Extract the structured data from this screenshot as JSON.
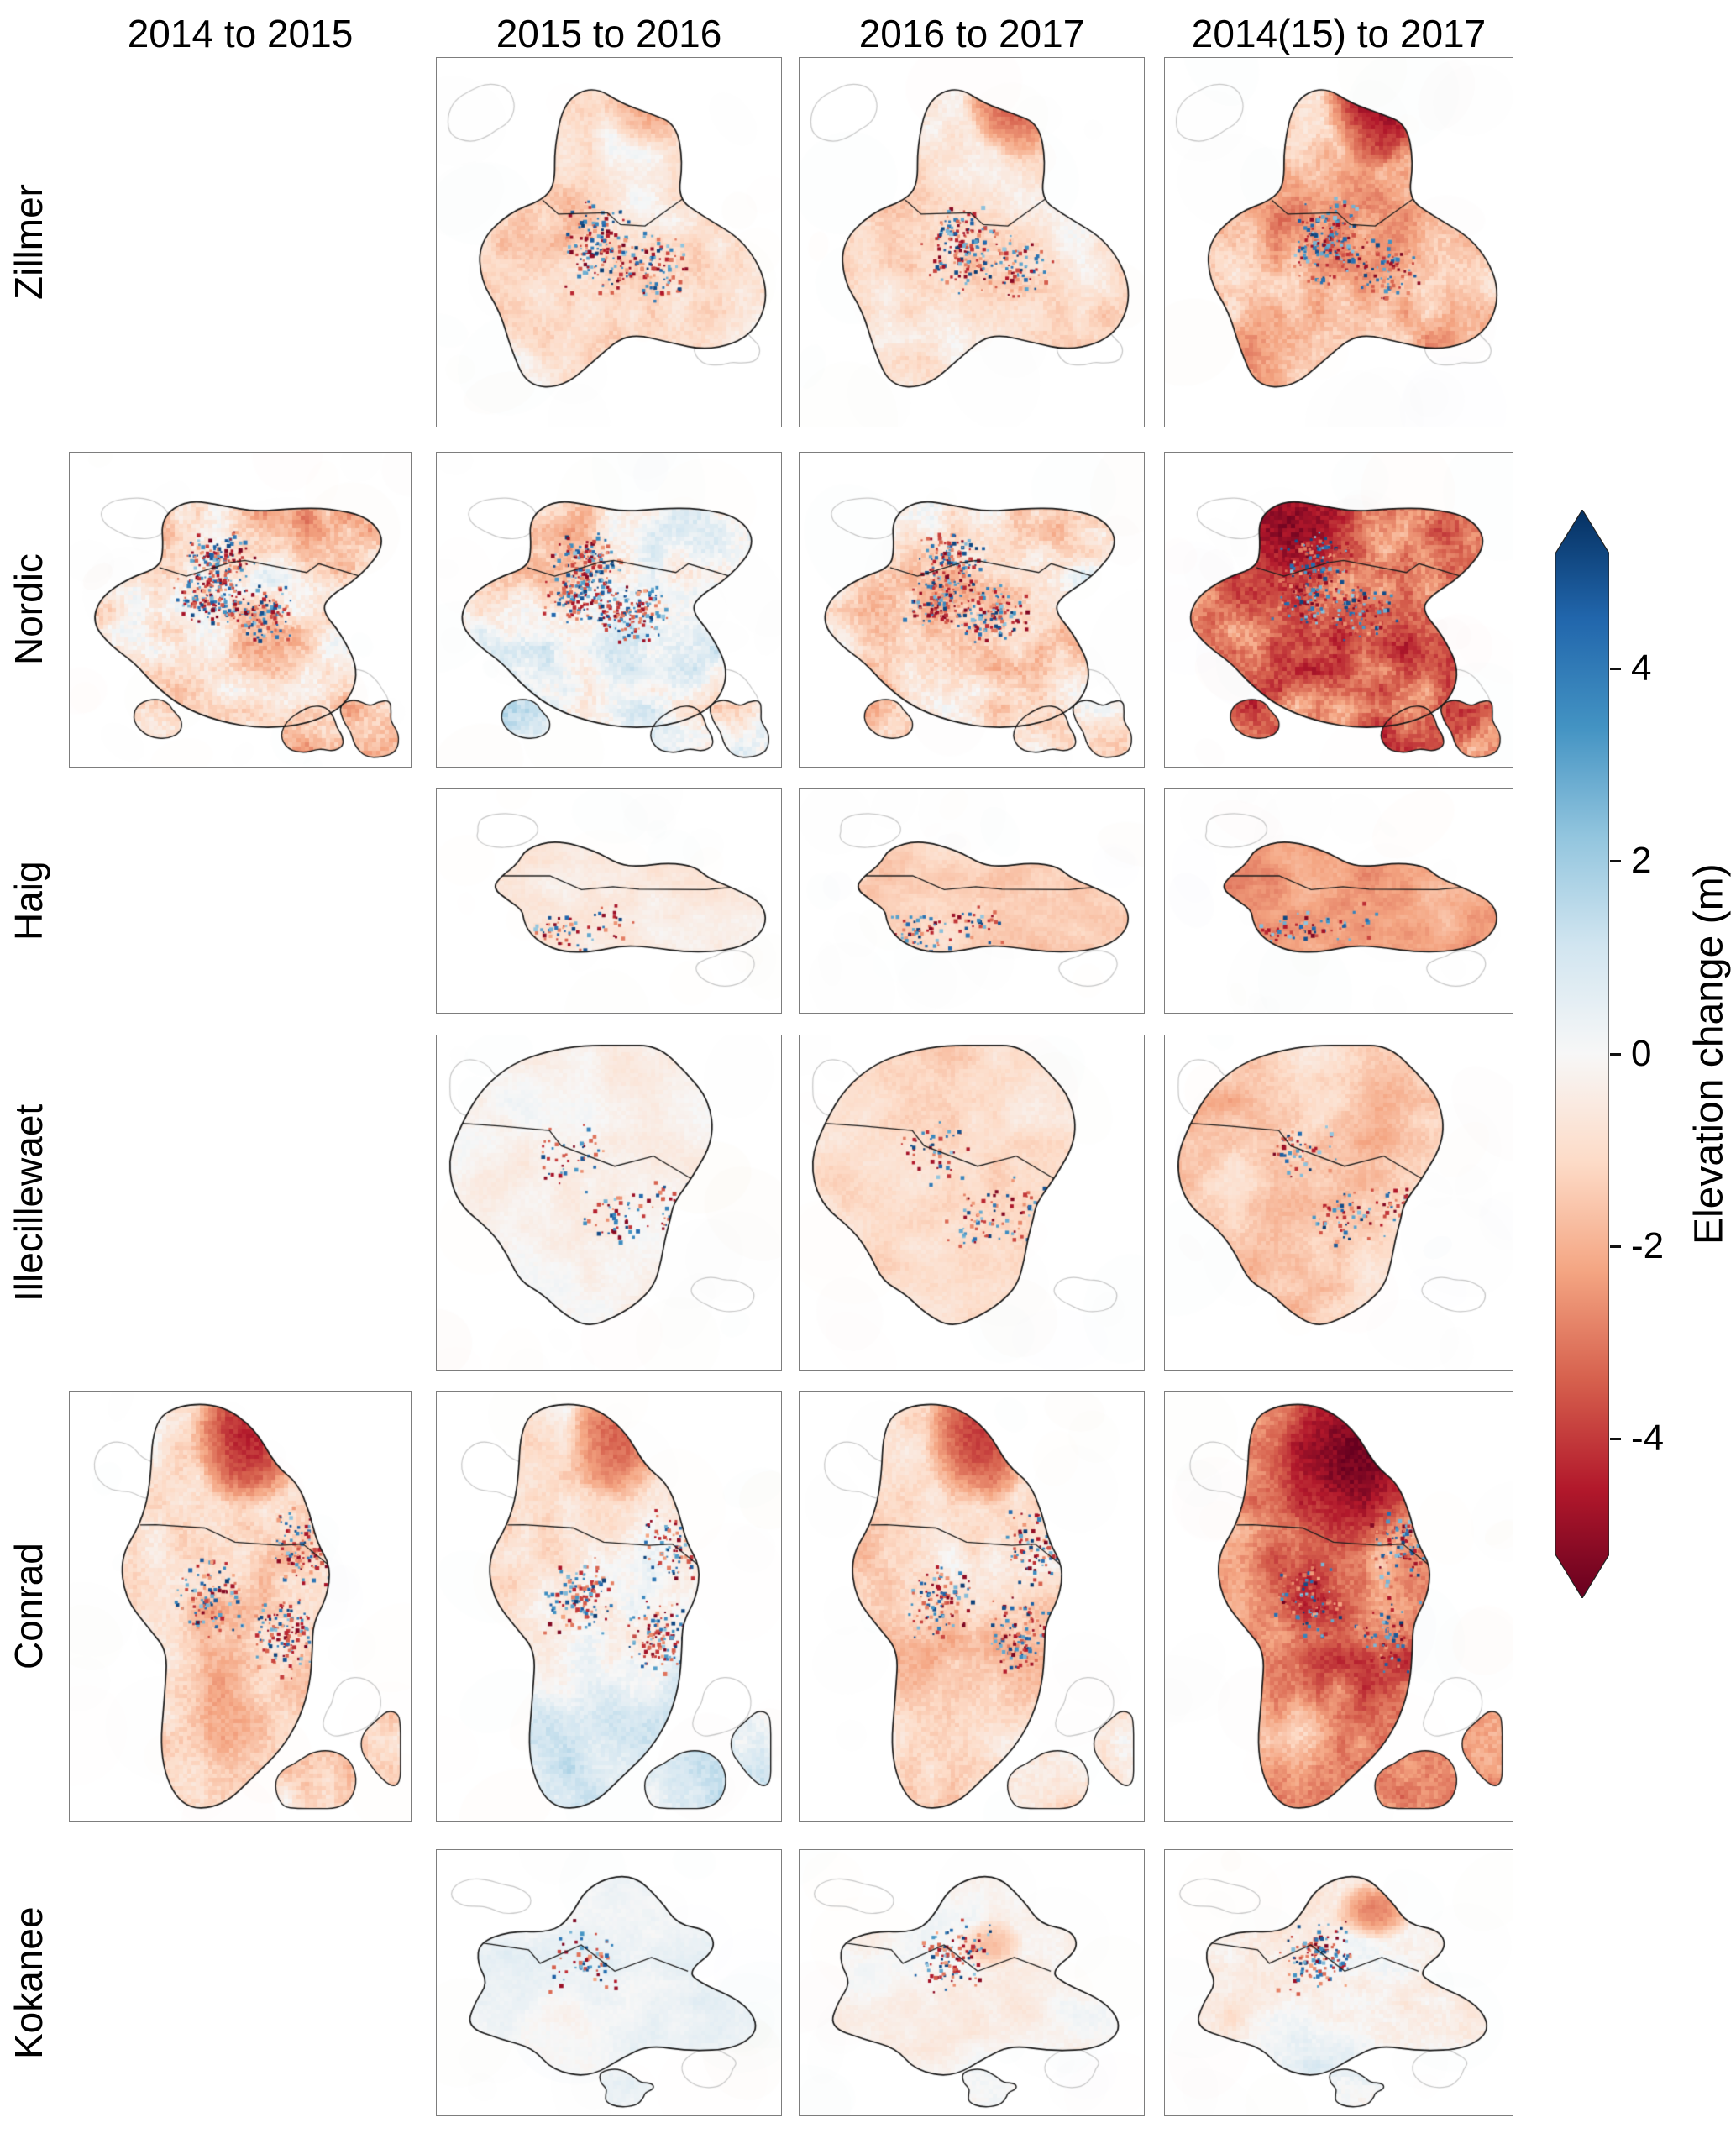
{
  "colorbar": {
    "label": "Elevation change (m)",
    "ticks": [
      4,
      2,
      0,
      -2,
      -4
    ],
    "extend": "both",
    "colormap": [
      "#67001f",
      "#b2182b",
      "#d6604d",
      "#f4a582",
      "#fddbc7",
      "#f7f7f7",
      "#d1e5f0",
      "#92c5de",
      "#4393c3",
      "#2166ac",
      "#053061"
    ]
  },
  "chart_data": {
    "type": "heatmap",
    "title": "",
    "value_label": "Elevation change (m)",
    "columns": [
      "2014 to 2015",
      "2015 to 2016",
      "2016 to 2017",
      "2014(15) to 2017"
    ],
    "rows": [
      {
        "name": "Zillmer",
        "panels": [
          {
            "present": false
          },
          {
            "present": true,
            "mean_change_m": -0.7,
            "variability_m": 0.7,
            "speckle": 260,
            "hotspot": {
              "x": 0.63,
              "y": 0.1,
              "r": 0.16,
              "value_m": -2.2
            }
          },
          {
            "present": true,
            "mean_change_m": -0.9,
            "variability_m": 0.7,
            "speckle": 240,
            "hotspot": {
              "x": 0.63,
              "y": 0.1,
              "r": 0.17,
              "value_m": -3.2
            }
          },
          {
            "present": true,
            "mean_change_m": -1.6,
            "variability_m": 0.9,
            "speckle": 280,
            "hotspot": {
              "x": 0.63,
              "y": 0.1,
              "r": 0.19,
              "value_m": -4.6
            }
          }
        ]
      },
      {
        "name": "Nordic",
        "panels": [
          {
            "present": true,
            "mean_change_m": -1.2,
            "variability_m": 1.1,
            "speckle": 420
          },
          {
            "present": true,
            "mean_change_m": -0.2,
            "variability_m": 1.0,
            "speckle": 420,
            "tilt_m": 0.5
          },
          {
            "present": true,
            "mean_change_m": -0.9,
            "variability_m": 1.0,
            "speckle": 380
          },
          {
            "present": true,
            "mean_change_m": -2.8,
            "variability_m": 1.2,
            "speckle": 320,
            "hotspot": {
              "x": 0.35,
              "y": 0.22,
              "r": 0.25,
              "value_m": -4.6
            }
          }
        ]
      },
      {
        "name": "Haig",
        "panels": [
          {
            "present": false
          },
          {
            "present": true,
            "mean_change_m": -0.6,
            "variability_m": 0.35,
            "speckle": 70
          },
          {
            "present": true,
            "mean_change_m": -1.3,
            "variability_m": 0.4,
            "speckle": 90
          },
          {
            "present": true,
            "mean_change_m": -2.1,
            "variability_m": 0.45,
            "speckle": 80
          }
        ]
      },
      {
        "name": "Illecillewaet",
        "panels": [
          {
            "present": false
          },
          {
            "present": true,
            "mean_change_m": -0.25,
            "variability_m": 0.35,
            "speckle": 150
          },
          {
            "present": true,
            "mean_change_m": -0.9,
            "variability_m": 0.45,
            "speckle": 160
          },
          {
            "present": true,
            "mean_change_m": -1.3,
            "variability_m": 0.55,
            "speckle": 160
          }
        ]
      },
      {
        "name": "Conrad",
        "panels": [
          {
            "present": true,
            "mean_change_m": -1.1,
            "variability_m": 0.8,
            "speckle": 360,
            "hotspot": {
              "x": 0.52,
              "y": 0.1,
              "r": 0.18,
              "value_m": -4.0
            }
          },
          {
            "present": true,
            "mean_change_m": -0.1,
            "variability_m": 0.7,
            "speckle": 330,
            "tilt_m": 0.9,
            "hotspot": {
              "x": 0.52,
              "y": 0.1,
              "r": 0.16,
              "value_m": -3.0
            }
          },
          {
            "present": true,
            "mean_change_m": -1.0,
            "variability_m": 0.7,
            "speckle": 310,
            "hotspot": {
              "x": 0.52,
              "y": 0.1,
              "r": 0.17,
              "value_m": -3.6
            }
          },
          {
            "present": true,
            "mean_change_m": -2.5,
            "variability_m": 0.9,
            "speckle": 300,
            "hotspot": {
              "x": 0.55,
              "y": 0.14,
              "r": 0.24,
              "value_m": -5.0
            }
          }
        ]
      },
      {
        "name": "Kokanee",
        "panels": [
          {
            "present": false
          },
          {
            "present": true,
            "mean_change_m": 0.25,
            "variability_m": 0.3,
            "speckle": 60
          },
          {
            "present": true,
            "mean_change_m": -0.15,
            "variability_m": 0.35,
            "speckle": 110,
            "hotspot": {
              "x": 0.55,
              "y": 0.35,
              "r": 0.1,
              "value_m": -1.6
            }
          },
          {
            "present": true,
            "mean_change_m": -0.3,
            "variability_m": 0.5,
            "speckle": 130,
            "tilt_m": 0.6,
            "hotspot": {
              "x": 0.6,
              "y": 0.22,
              "r": 0.12,
              "value_m": -2.6
            }
          }
        ]
      }
    ]
  }
}
